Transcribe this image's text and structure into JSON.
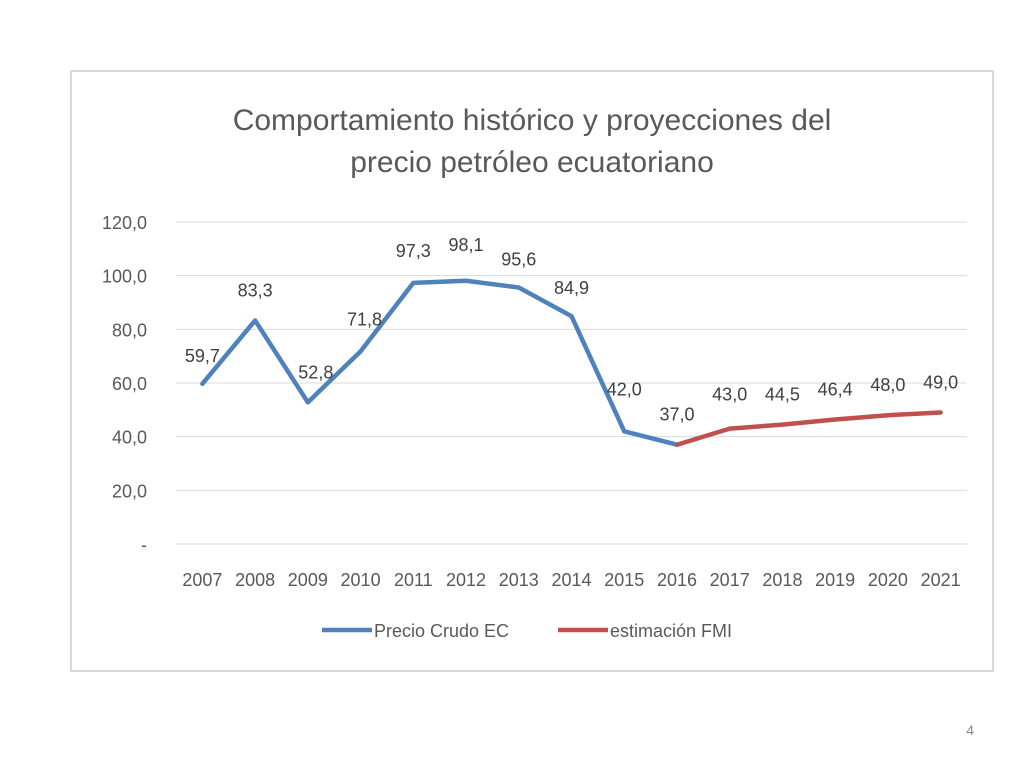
{
  "slide": {
    "number": "4"
  },
  "chart_data": {
    "type": "line",
    "title_lines": [
      "Comportamiento histórico y proyecciones del",
      "precio petróleo ecuatoriano"
    ],
    "xlabel": "",
    "ylabel": "",
    "ylim": [
      0,
      120
    ],
    "y_ticks": [
      0,
      20,
      40,
      60,
      80,
      100,
      120
    ],
    "y_tick_labels": [
      "-",
      "20,0",
      "40,0",
      "60,0",
      "80,0",
      "100,0",
      "120,0"
    ],
    "categories": [
      "2007",
      "2008",
      "2009",
      "2010",
      "2011",
      "2012",
      "2013",
      "2014",
      "2015",
      "2016",
      "2017",
      "2018",
      "2019",
      "2020",
      "2021"
    ],
    "grid": true,
    "legend_position": "bottom",
    "series": [
      {
        "name": "Precio Crudo EC",
        "color": "#4f81bd",
        "x": [
          "2007",
          "2008",
          "2009",
          "2010",
          "2011",
          "2012",
          "2013",
          "2014",
          "2015",
          "2016"
        ],
        "values": [
          59.7,
          83.3,
          52.8,
          71.8,
          97.3,
          98.1,
          95.6,
          84.9,
          42.0,
          37.0
        ],
        "labels": [
          "59,7",
          "83,3",
          "52,8",
          "71,8",
          "97,3",
          "98,1",
          "95,6",
          "84,9",
          "42,0",
          "37,0"
        ]
      },
      {
        "name": "estimación FMI",
        "color": "#c0504d",
        "x": [
          "2016",
          "2017",
          "2018",
          "2019",
          "2020",
          "2021"
        ],
        "values": [
          37.0,
          43.0,
          44.5,
          46.4,
          48.0,
          49.0
        ],
        "labels": [
          "",
          "43,0",
          "44,5",
          "46,4",
          "48,0",
          "49,0"
        ]
      }
    ]
  }
}
